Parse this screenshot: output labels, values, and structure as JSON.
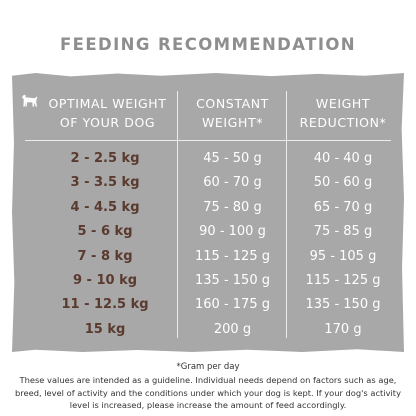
{
  "title": "FEEDING RECOMMENDATION",
  "headers": {
    "col1": [
      "OPTIMAL WEIGHT",
      "OF YOUR DOG"
    ],
    "col2": [
      "CONSTANT",
      "WEIGHT*"
    ],
    "col3": [
      "WEIGHT",
      "REDUCTION*"
    ]
  },
  "rows": [
    {
      "weight": "2 - 2.5 kg",
      "constant": "45 - 50 g",
      "reduction": "40 - 40 g"
    },
    {
      "weight": "3 - 3.5 kg",
      "constant": "60 - 70 g",
      "reduction": "50 - 60 g"
    },
    {
      "weight": "4 - 4.5 kg",
      "constant": "75 - 80 g",
      "reduction": "65 - 70 g"
    },
    {
      "weight": "5 - 6 kg",
      "constant": "90 - 100 g",
      "reduction": "75 - 85 g"
    },
    {
      "weight": "7 - 8 kg",
      "constant": "115 - 125 g",
      "reduction": "95 - 105 g"
    },
    {
      "weight": "9 - 10 kg",
      "constant": "135 - 150 g",
      "reduction": "115 - 125 g"
    },
    {
      "weight": "11 - 12.5 kg",
      "constant": "160 - 175 g",
      "reduction": "135 - 150 g"
    },
    {
      "weight": "15 kg",
      "constant": "200 g",
      "reduction": "170 g"
    }
  ],
  "footnote": "*Gram per day",
  "disclaimer": "These values are intended as a guideline. Individual needs depend on factors such as age, breed, level of activity and the conditions under which your dog is kept. If your dog's activity level is increased, please increase the amount of feed accordingly.",
  "colors": {
    "panel": "#a8a8a8",
    "weight_text": "#5a3a2e",
    "title": "#8e8e8e"
  },
  "icons": {
    "header": "dog-icon"
  }
}
